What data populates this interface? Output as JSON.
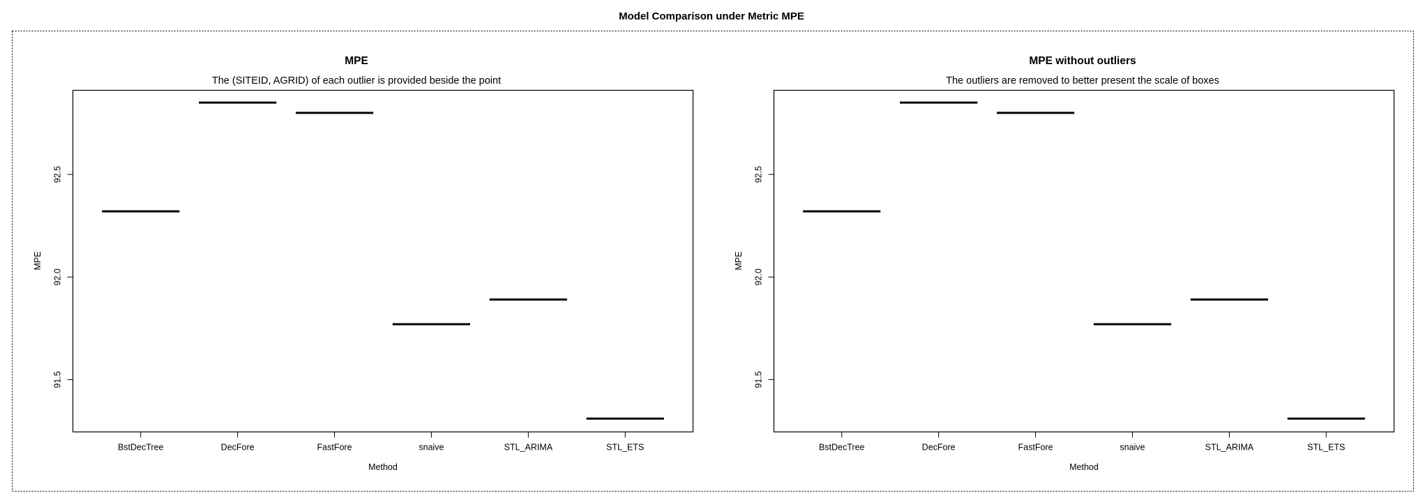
{
  "figure": {
    "title": "Model Comparison under Metric MPE"
  },
  "chart_data": [
    {
      "type": "boxplot",
      "title": "MPE",
      "subtitle": "The (SITEID, AGRID) of each outlier is provided beside the point",
      "xlabel": "Method",
      "ylabel": "MPE",
      "categories": [
        "BstDecTree",
        "DecFore",
        "FastFore",
        "snaive",
        "STL_ARIMA",
        "STL_ETS"
      ],
      "values": [
        92.32,
        92.85,
        92.8,
        91.77,
        91.89,
        91.31
      ],
      "ylim": [
        91.245,
        92.91
      ],
      "yticks": [
        "91.5",
        "92.0",
        "92.5"
      ],
      "grid": false
    },
    {
      "type": "boxplot",
      "title": "MPE without outliers",
      "subtitle": "The outliers are removed to better present the scale of boxes",
      "xlabel": "Method",
      "ylabel": "MPE",
      "categories": [
        "BstDecTree",
        "DecFore",
        "FastFore",
        "snaive",
        "STL_ARIMA",
        "STL_ETS"
      ],
      "values": [
        92.32,
        92.85,
        92.8,
        91.77,
        91.89,
        91.31
      ],
      "ylim": [
        91.245,
        92.91
      ],
      "yticks": [
        "91.5",
        "92.0",
        "92.5"
      ],
      "grid": false
    }
  ]
}
